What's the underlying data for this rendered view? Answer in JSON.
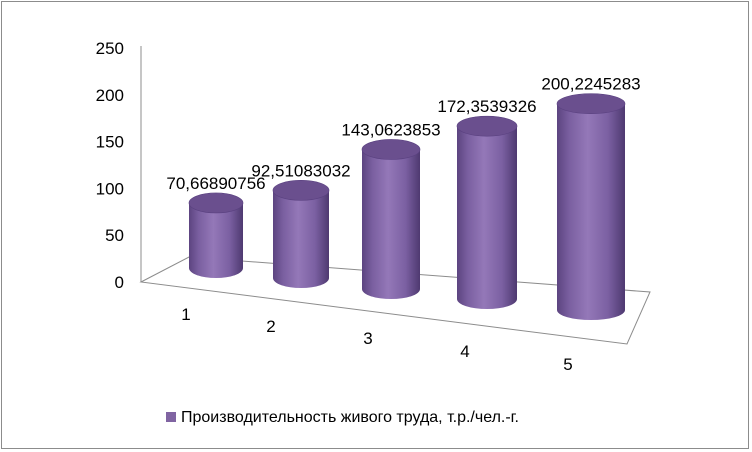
{
  "chart_data": {
    "type": "bar",
    "style": "3d-cylinder",
    "categories": [
      "1",
      "2",
      "3",
      "4",
      "5"
    ],
    "series": [
      {
        "name": "Производительность живого труда, т.р./чел.-г.",
        "values": [
          70.66890756,
          92.51083032,
          143.0623853,
          172.3539326,
          200.2245283
        ],
        "data_labels": [
          "70,66890756",
          "92,51083032",
          "143,0623853",
          "172,3539326",
          "200,2245283"
        ],
        "color": "#8064a2"
      }
    ],
    "y_ticks": [
      "0",
      "50",
      "100",
      "150",
      "200",
      "250"
    ],
    "ylim": [
      0,
      250
    ],
    "grid": false,
    "legend_position": "bottom"
  }
}
